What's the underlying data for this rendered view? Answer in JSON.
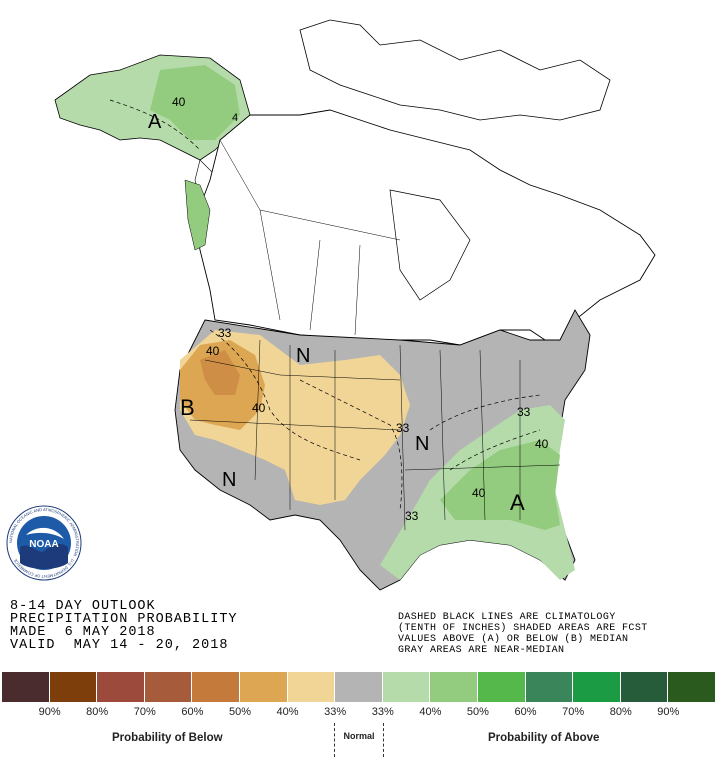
{
  "title_lines": {
    "line1": "8-14 DAY OUTLOOK",
    "line2": "PRECIPITATION PROBABILITY",
    "line3": "MADE  6 MAY 2018",
    "line4": "VALID  MAY 14 - 20, 2018"
  },
  "notes": {
    "line1": "DASHED BLACK LINES ARE CLIMATOLOGY",
    "line2": "(TENTH OF INCHES) SHADED AREAS ARE FCST",
    "line3": "VALUES ABOVE (A) OR BELOW (B) MEDIAN",
    "line4": "GRAY AREAS ARE NEAR-MEDIAN"
  },
  "logo": {
    "text": "NOAA",
    "ring_text": "NATIONAL OCEANIC AND ATMOSPHERIC ADMINISTRATION · U.S. DEPARTMENT OF COMMERCE"
  },
  "map_labels": {
    "alaska_A": "A",
    "alaska_40": "40",
    "alaska_4": "4",
    "northwest_33": "33",
    "northwest_40": "40",
    "west_B": "B",
    "west_40": "40",
    "north_N": "N",
    "southwest_N": "N",
    "central_N": "N",
    "central_33": "33",
    "south_33": "33",
    "east_33": "33",
    "east_40a": "40",
    "east_40b": "40",
    "southeast_A": "A"
  },
  "legend": {
    "colors": [
      "#4a2c2e",
      "#7d3e0c",
      "#9b4a3b",
      "#a65c3a",
      "#c47a3b",
      "#dca653",
      "#f0d596",
      "#b4b4b4",
      "#b5dbaa",
      "#93cc7e",
      "#55b84a",
      "#3b855a",
      "#1a9b44",
      "#275c3a",
      "#2b5a1f"
    ],
    "labels": [
      "90%",
      "80%",
      "70%",
      "60%",
      "50%",
      "40%",
      "33%",
      "33%",
      "40%",
      "50%",
      "60%",
      "70%",
      "80%",
      "90%"
    ],
    "below_caption": "Probability of Below",
    "normal_caption": "Normal",
    "above_caption": "Probability of Above"
  }
}
